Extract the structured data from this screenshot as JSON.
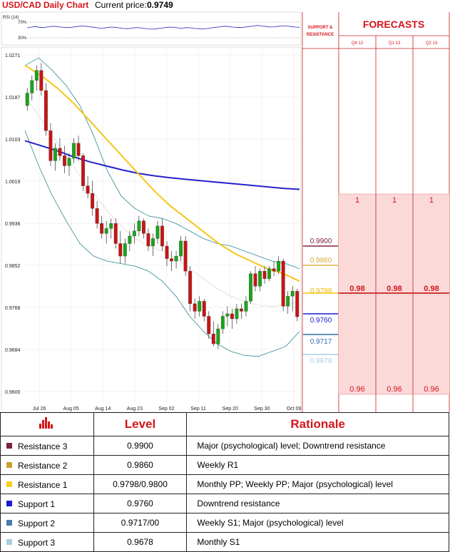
{
  "header": {
    "title": "USD/CAD Daily Chart",
    "price_label": "Current price:",
    "price": "0.9749"
  },
  "rsi": {
    "label": "RSI (14)",
    "levels": [
      "70%",
      "30%"
    ],
    "values": [
      55,
      58,
      60,
      57,
      56,
      59,
      61,
      60,
      58,
      57,
      56,
      58,
      60,
      62,
      61,
      59,
      57,
      55,
      54,
      56,
      58,
      57,
      55,
      53,
      52,
      54,
      56,
      55,
      53,
      51,
      50,
      52,
      54,
      56,
      58,
      57,
      55,
      54,
      56,
      55,
      53,
      52,
      51,
      53,
      55,
      57,
      59,
      61,
      60,
      58,
      57,
      56,
      58,
      60,
      62,
      64,
      62,
      60,
      58,
      59,
      61,
      63,
      62,
      60,
      58,
      57
    ]
  },
  "chart_data": {
    "type": "candlestick",
    "title": "USD/CAD Daily Chart",
    "ylim": [
      0.96,
      1.0271
    ],
    "y_ticks": [
      "1.0271",
      "1.0187",
      "1.0103",
      "1.0019",
      "0.9936",
      "0.9852",
      "0.9768",
      "0.9684",
      "0.9600"
    ],
    "x_ticks": [
      "Jul 26",
      "Aug 05",
      "Aug 14",
      "Aug 23",
      "Sep 02",
      "Sep 11",
      "Sep 20",
      "Sep 30",
      "Oct 09"
    ],
    "bullish_color": "#1aa51a",
    "bearish_color": "#c81414",
    "candles": [
      [
        1.017,
        1.0205,
        1.016,
        1.0195
      ],
      [
        1.0195,
        1.023,
        1.018,
        1.022
      ],
      [
        1.022,
        1.025,
        1.02,
        1.024
      ],
      [
        1.024,
        1.0255,
        1.019,
        1.02
      ],
      [
        1.02,
        1.0215,
        1.011,
        1.012
      ],
      [
        1.012,
        1.0135,
        1.005,
        1.006
      ],
      [
        1.006,
        1.0095,
        1.004,
        1.0085
      ],
      [
        1.0085,
        1.0105,
        1.006,
        1.007
      ],
      [
        1.007,
        1.009,
        1.0035,
        1.005
      ],
      [
        1.005,
        1.0075,
        1.003,
        1.0065
      ],
      [
        1.0065,
        1.0105,
        1.0055,
        1.0095
      ],
      [
        1.0095,
        1.011,
        1.006,
        1.007
      ],
      [
        1.007,
        1.0075,
        1.0,
        1.001
      ],
      [
        1.001,
        1.003,
        0.9985,
        0.9995
      ],
      [
        0.9995,
        1.002,
        0.995,
        0.9965
      ],
      [
        0.9965,
        0.998,
        0.9925,
        0.9935
      ],
      [
        0.9935,
        0.995,
        0.9905,
        0.9915
      ],
      [
        0.9915,
        0.994,
        0.9895,
        0.9925
      ],
      [
        0.9925,
        0.9945,
        0.9905,
        0.9935
      ],
      [
        0.9935,
        0.9945,
        0.9885,
        0.9895
      ],
      [
        0.9895,
        0.992,
        0.9855,
        0.987
      ],
      [
        0.987,
        0.9905,
        0.9855,
        0.9895
      ],
      [
        0.9895,
        0.992,
        0.988,
        0.991
      ],
      [
        0.991,
        0.9935,
        0.9895,
        0.992
      ],
      [
        0.992,
        0.995,
        0.991,
        0.994
      ],
      [
        0.994,
        0.9945,
        0.9905,
        0.9915
      ],
      [
        0.9915,
        0.9925,
        0.988,
        0.989
      ],
      [
        0.989,
        0.9915,
        0.987,
        0.9905
      ],
      [
        0.9905,
        0.994,
        0.9895,
        0.993
      ],
      [
        0.993,
        0.9945,
        0.988,
        0.989
      ],
      [
        0.989,
        0.99,
        0.985,
        0.9865
      ],
      [
        0.9865,
        0.988,
        0.984,
        0.986
      ],
      [
        0.986,
        0.988,
        0.9845,
        0.987
      ],
      [
        0.987,
        0.991,
        0.986,
        0.99
      ],
      [
        0.99,
        0.991,
        0.983,
        0.984
      ],
      [
        0.984,
        0.985,
        0.976,
        0.9775
      ],
      [
        0.9775,
        0.9785,
        0.9745,
        0.976
      ],
      [
        0.976,
        0.979,
        0.975,
        0.978
      ],
      [
        0.978,
        0.9785,
        0.974,
        0.975
      ],
      [
        0.975,
        0.976,
        0.9705,
        0.9715
      ],
      [
        0.9715,
        0.974,
        0.969,
        0.9695
      ],
      [
        0.9695,
        0.9735,
        0.9685,
        0.9725
      ],
      [
        0.9725,
        0.976,
        0.9715,
        0.975
      ],
      [
        0.975,
        0.977,
        0.973,
        0.9755
      ],
      [
        0.9755,
        0.9765,
        0.9725,
        0.9745
      ],
      [
        0.9745,
        0.9775,
        0.9735,
        0.9765
      ],
      [
        0.9765,
        0.9775,
        0.9745,
        0.976
      ],
      [
        0.976,
        0.979,
        0.975,
        0.978
      ],
      [
        0.978,
        0.984,
        0.9775,
        0.9835
      ],
      [
        0.9835,
        0.985,
        0.98,
        0.981
      ],
      [
        0.981,
        0.9845,
        0.98,
        0.984
      ],
      [
        0.984,
        0.985,
        0.9815,
        0.9825
      ],
      [
        0.9825,
        0.985,
        0.982,
        0.9845
      ],
      [
        0.9845,
        0.986,
        0.983,
        0.984
      ],
      [
        0.984,
        0.987,
        0.9835,
        0.986
      ],
      [
        0.986,
        0.9865,
        0.976,
        0.977
      ],
      [
        0.977,
        0.98,
        0.9755,
        0.979
      ],
      [
        0.979,
        0.981,
        0.976,
        0.98
      ],
      [
        0.98,
        0.9805,
        0.974,
        0.9749
      ]
    ],
    "ma_yellow": [
      1.025,
      1.023,
      1.0205,
      1.0175,
      1.014,
      1.0105,
      1.007,
      1.0035,
      1.0,
      0.997,
      0.9945,
      0.992,
      0.9895,
      0.9875,
      0.986,
      0.9845,
      0.9835,
      0.982
    ],
    "ma_blue": [
      1.01,
      1.009,
      1.008,
      1.0068,
      1.0058,
      1.005,
      1.0042,
      1.0035,
      1.003,
      1.0026,
      1.0023,
      1.002,
      1.0017,
      1.0014,
      1.0011,
      1.0008,
      1.0005,
      1.0003
    ],
    "bb_upper": [
      1.025,
      1.0265,
      1.024,
      1.021,
      1.017,
      1.011,
      1.004,
      0.999,
      0.9965,
      0.995,
      0.9945,
      0.9935,
      0.992,
      0.9905,
      0.9895,
      0.989,
      0.988,
      0.987,
      0.986,
      0.9855,
      0.9845
    ],
    "bb_lower": [
      1.012,
      1.005,
      0.999,
      0.994,
      0.9895,
      0.987,
      0.986,
      0.9855,
      0.985,
      0.984,
      0.982,
      0.979,
      0.975,
      0.972,
      0.9695,
      0.968,
      0.9672,
      0.967,
      0.968,
      0.969,
      0.972
    ],
    "bb_mid": [
      1.019,
      1.015,
      1.011,
      1.007,
      1.003,
      0.9995,
      0.996,
      0.993,
      0.9905,
      0.989,
      0.988,
      0.9865,
      0.9845,
      0.9825,
      0.9805,
      0.979,
      0.978,
      0.9772,
      0.977,
      0.9772,
      0.978
    ]
  },
  "levels": {
    "r3": {
      "value": "0.9900",
      "color": "#7b2340"
    },
    "r2": {
      "value": "0.9860",
      "color": "#e0b040"
    },
    "r1": {
      "value": "0.9798",
      "color": "#f5c518"
    },
    "s1": {
      "value": "0.9760",
      "color": "#1a1ad4"
    },
    "s2": {
      "value": "0.9717",
      "color": "#2e6fa8"
    },
    "s3": {
      "value": "0.9678",
      "color": "#a9cfe0"
    }
  },
  "forecast_panel": {
    "support_resistance_label": [
      "SUPPORT &",
      "RESISTANCE"
    ],
    "title": "FORECASTS",
    "columns": [
      "Q4 12",
      "Q1 13",
      "Q2 13"
    ],
    "top_values": [
      "1",
      "1",
      "1"
    ],
    "mid_values": [
      "0.98",
      "0.98",
      "0.98"
    ],
    "bottom_values": [
      "0.96",
      "0.96",
      "0.96"
    ]
  },
  "table": {
    "header_level": "Level",
    "header_rationale": "Rationale",
    "rows": [
      {
        "name": "Resistance 3",
        "color": "#7b2340",
        "level": "0.9900",
        "rationale": "Major (psychological) level; Downtrend resistance"
      },
      {
        "name": "Resistance 2",
        "color": "#c8a030",
        "level": "0.9860",
        "rationale": "Weekly R1"
      },
      {
        "name": "Resistance 1",
        "color": "#f5d020",
        "level": "0.9798/0.9800",
        "rationale": "Monthly PP; Weekly PP;  Major (psychological) level"
      },
      {
        "name": "Support 1",
        "color": "#1a1ad4",
        "level": "0.9760",
        "rationale": "Downtrend resistance"
      },
      {
        "name": "Support 2",
        "color": "#4a7ab0",
        "level": "0.9717/00",
        "rationale": "Weekly S1; Major (psychological) level"
      },
      {
        "name": "Support 3",
        "color": "#a9cfe0",
        "level": "0.9678",
        "rationale": "Monthly S1"
      }
    ]
  }
}
